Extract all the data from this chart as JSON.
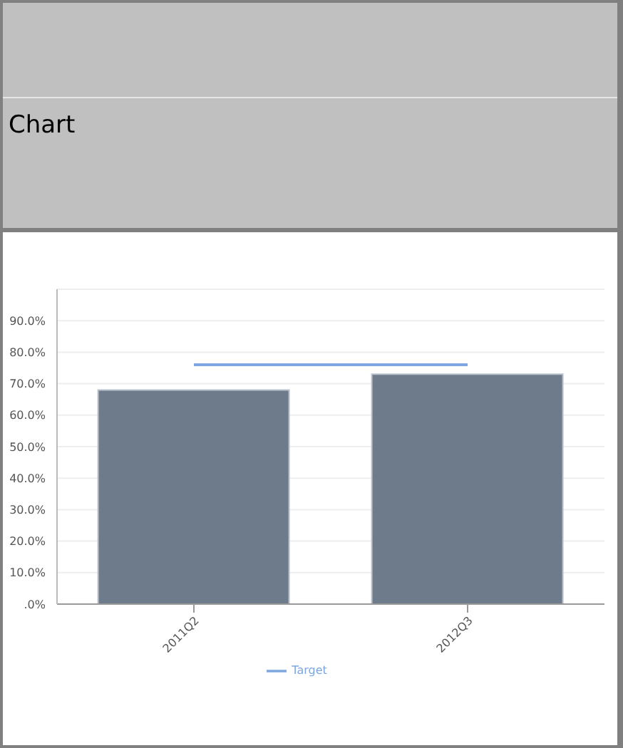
{
  "chart_data": {
    "type": "bar",
    "title": "Chart",
    "categories": [
      "2011Q2",
      "2012Q3"
    ],
    "series": [
      {
        "color": "#6e7b8b",
        "values": [
          68,
          73
        ]
      },
      {
        "type": "line",
        "name": "Target",
        "color": "#7ea6e0",
        "values": [
          76,
          76
        ]
      }
    ],
    "ylim": [
      0,
      100
    ],
    "yticks": [
      {
        "value": 0,
        "label": ".0%"
      },
      {
        "value": 10,
        "label": "10.0%"
      },
      {
        "value": 20,
        "label": "20.0%"
      },
      {
        "value": 30,
        "label": "30.0%"
      },
      {
        "value": 40,
        "label": "40.0%"
      },
      {
        "value": 50,
        "label": "50.0%"
      },
      {
        "value": 60,
        "label": "60.0%"
      },
      {
        "value": 70,
        "label": "70.0%"
      },
      {
        "value": 80,
        "label": "80.0%"
      },
      {
        "value": 90,
        "label": "90.0%"
      }
    ],
    "grid": "y",
    "legend": "bottom",
    "marker": "none"
  }
}
